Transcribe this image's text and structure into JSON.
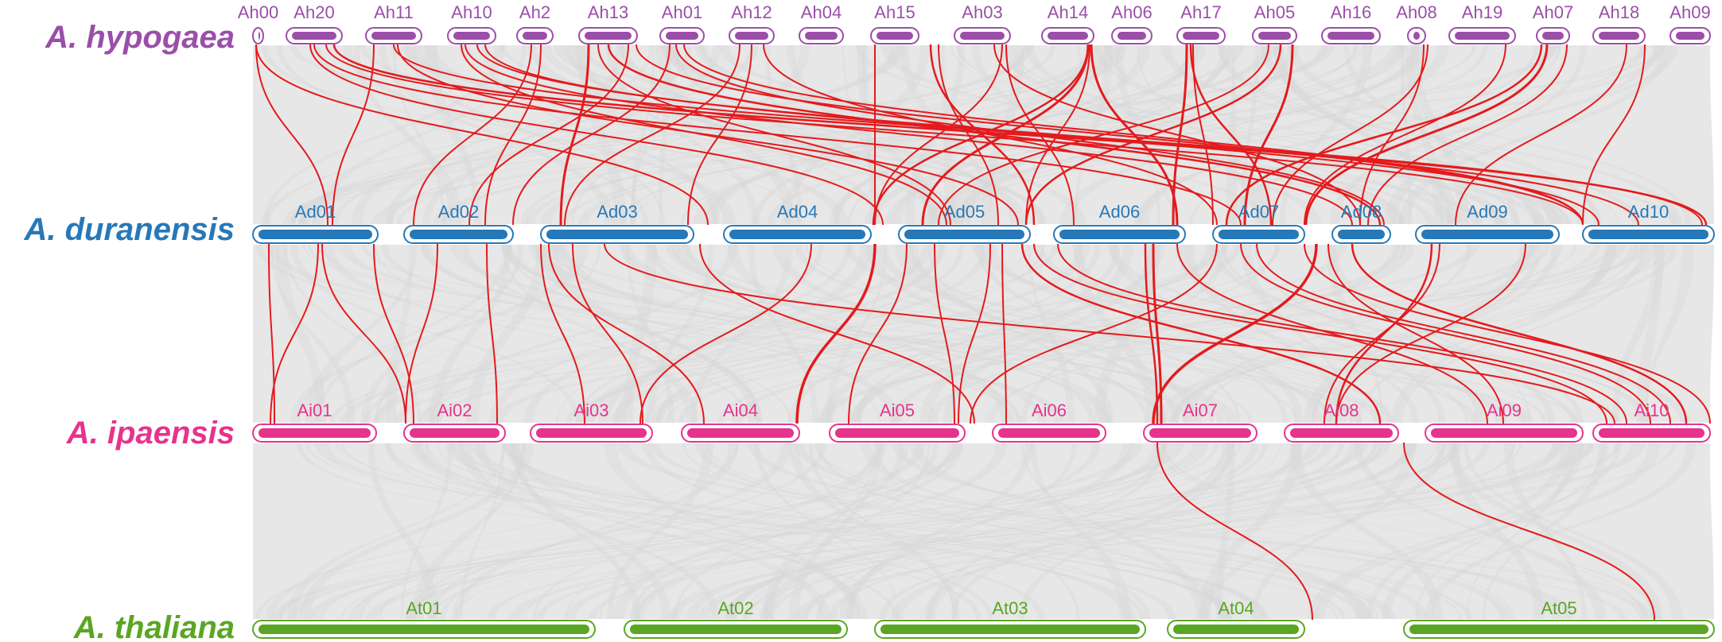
{
  "colors": {
    "hypogaea": "#9b4ea8",
    "duranensis": "#2778b8",
    "ipaensis": "#e6338e",
    "thaliana": "#5aa623",
    "background_links": "#e4e4e4",
    "highlight_links": "#e41a1c"
  },
  "species": [
    {
      "id": "hypogaea",
      "name": "A. hypogaea",
      "chromosomes": [
        "Ah00",
        "Ah20",
        "Ah11",
        "Ah10",
        "Ah2",
        "Ah13",
        "Ah01",
        "Ah12",
        "Ah04",
        "Ah15",
        "Ah03",
        "Ah14",
        "Ah06",
        "Ah17",
        "Ah05",
        "Ah16",
        "Ah08",
        "Ah19",
        "Ah07",
        "Ah18",
        "Ah09"
      ]
    },
    {
      "id": "duranensis",
      "name": "A. duranensis",
      "chromosomes": [
        "Ad01",
        "Ad02",
        "Ad03",
        "Ad04",
        "Ad05",
        "Ad06",
        "Ad07",
        "Ad08",
        "Ad09",
        "Ad10"
      ]
    },
    {
      "id": "ipaensis",
      "name": "A. ipaensis",
      "chromosomes": [
        "Ai01",
        "Ai02",
        "Ai03",
        "Ai04",
        "Ai05",
        "Ai06",
        "Ai07",
        "Ai08",
        "Ai09",
        "Ai10"
      ]
    },
    {
      "id": "thaliana",
      "name": "A. thaliana",
      "chromosomes": [
        "At01",
        "At02",
        "At03",
        "At04",
        "At05"
      ]
    }
  ]
}
